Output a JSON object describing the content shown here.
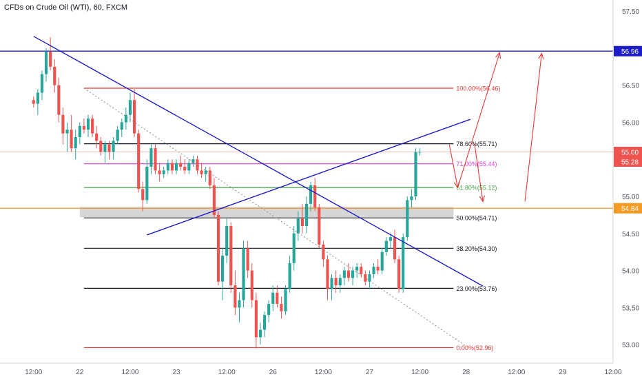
{
  "chart_data": {
    "type": "candlestick",
    "title": "CFDs on Crude Oil (WTI), 60, FXCM",
    "price_axis": {
      "ylim": [
        52.75,
        57.65
      ],
      "ticks": [
        57.5,
        57.0,
        56.5,
        56.0,
        55.5,
        55.0,
        54.5,
        54.0,
        53.5,
        53.0
      ],
      "tick_labels": [
        "57.50",
        "57.00",
        "56.50",
        "56.00",
        "55.50",
        "55.00",
        "54.50",
        "54.00",
        "53.50",
        "53.00"
      ]
    },
    "time_axis": {
      "xlim": [
        -8,
        138
      ],
      "ticks": [
        {
          "t": 0,
          "label": "12:00"
        },
        {
          "t": 11,
          "label": "22"
        },
        {
          "t": 23,
          "label": "12:00"
        },
        {
          "t": 34,
          "label": "23"
        },
        {
          "t": 46,
          "label": "12:00"
        },
        {
          "t": 57,
          "label": "26"
        },
        {
          "t": 69,
          "label": "12:00"
        },
        {
          "t": 80,
          "label": "27"
        },
        {
          "t": 92,
          "label": "12:00"
        },
        {
          "t": 103,
          "label": "28"
        },
        {
          "t": 115,
          "label": "12:00"
        },
        {
          "t": 126,
          "label": "29"
        },
        {
          "t": 138,
          "label": "12:00"
        }
      ]
    },
    "colors": {
      "up": "#26a69a",
      "down": "#ef5350"
    },
    "candles_ohlc": [
      [
        56.3,
        56.35,
        56.2,
        56.25
      ],
      [
        56.25,
        56.45,
        56.1,
        56.4
      ],
      [
        56.4,
        56.7,
        56.3,
        56.65
      ],
      [
        56.65,
        57.0,
        56.55,
        56.95
      ],
      [
        56.95,
        57.15,
        56.7,
        56.75
      ],
      [
        56.75,
        56.85,
        56.4,
        56.5
      ],
      [
        56.5,
        56.6,
        56.0,
        56.1
      ],
      [
        56.1,
        56.2,
        55.7,
        55.85
      ],
      [
        55.85,
        56.0,
        55.6,
        55.9
      ],
      [
        55.9,
        56.1,
        55.6,
        55.65
      ],
      [
        55.65,
        55.9,
        55.5,
        55.8
      ],
      [
        55.8,
        56.0,
        55.7,
        55.95
      ],
      [
        55.95,
        56.05,
        55.85,
        55.9
      ],
      [
        55.9,
        56.1,
        55.8,
        56.05
      ],
      [
        56.05,
        56.1,
        55.8,
        55.85
      ],
      [
        55.85,
        55.95,
        55.65,
        55.75
      ],
      [
        55.75,
        55.8,
        55.55,
        55.6
      ],
      [
        55.6,
        55.75,
        55.45,
        55.7
      ],
      [
        55.7,
        55.75,
        55.5,
        55.6
      ],
      [
        55.6,
        55.8,
        55.5,
        55.75
      ],
      [
        55.75,
        55.95,
        55.7,
        55.9
      ],
      [
        55.9,
        56.05,
        55.8,
        56.0
      ],
      [
        56.0,
        56.2,
        55.9,
        56.1
      ],
      [
        56.1,
        56.4,
        56.0,
        56.3
      ],
      [
        56.3,
        56.45,
        55.8,
        55.85
      ],
      [
        55.85,
        55.9,
        55.05,
        55.1
      ],
      [
        55.1,
        55.2,
        54.8,
        54.95
      ],
      [
        54.95,
        55.5,
        54.9,
        55.4
      ],
      [
        55.4,
        55.7,
        55.3,
        55.65
      ],
      [
        55.65,
        55.7,
        55.3,
        55.35
      ],
      [
        55.35,
        55.45,
        55.2,
        55.3
      ],
      [
        55.3,
        55.4,
        55.25,
        55.35
      ],
      [
        55.35,
        55.5,
        55.3,
        55.45
      ],
      [
        55.45,
        55.5,
        55.3,
        55.35
      ],
      [
        55.35,
        55.5,
        55.3,
        55.45
      ],
      [
        55.45,
        55.55,
        55.35,
        55.4
      ],
      [
        55.4,
        55.5,
        55.3,
        55.35
      ],
      [
        55.35,
        55.5,
        55.3,
        55.45
      ],
      [
        55.45,
        55.55,
        55.4,
        55.5
      ],
      [
        55.5,
        55.55,
        55.3,
        55.35
      ],
      [
        55.35,
        55.45,
        55.25,
        55.3
      ],
      [
        55.3,
        55.4,
        55.2,
        55.35
      ],
      [
        55.35,
        55.4,
        55.1,
        55.15
      ],
      [
        55.15,
        55.25,
        54.7,
        54.75
      ],
      [
        54.75,
        54.8,
        53.8,
        53.85
      ],
      [
        53.85,
        54.3,
        53.6,
        54.2
      ],
      [
        54.2,
        54.7,
        54.1,
        54.6
      ],
      [
        54.6,
        54.65,
        53.7,
        53.8
      ],
      [
        53.8,
        54.0,
        53.4,
        53.5
      ],
      [
        53.5,
        53.7,
        53.3,
        53.6
      ],
      [
        53.6,
        54.4,
        53.5,
        54.3
      ],
      [
        54.3,
        54.4,
        53.9,
        54.0
      ],
      [
        54.0,
        54.1,
        53.5,
        53.6
      ],
      [
        53.6,
        53.7,
        52.95,
        53.1
      ],
      [
        53.1,
        53.3,
        53.0,
        53.2
      ],
      [
        53.2,
        53.45,
        53.1,
        53.4
      ],
      [
        53.4,
        53.6,
        53.3,
        53.55
      ],
      [
        53.55,
        53.8,
        53.45,
        53.7
      ],
      [
        53.7,
        53.8,
        53.5,
        53.55
      ],
      [
        53.55,
        53.65,
        53.35,
        53.45
      ],
      [
        53.45,
        53.8,
        53.4,
        53.75
      ],
      [
        53.75,
        54.2,
        53.7,
        54.1
      ],
      [
        54.1,
        54.6,
        54.0,
        54.5
      ],
      [
        54.5,
        54.8,
        54.4,
        54.7
      ],
      [
        54.7,
        54.9,
        54.5,
        54.6
      ],
      [
        54.6,
        55.0,
        54.5,
        54.9
      ],
      [
        54.9,
        55.2,
        54.8,
        55.15
      ],
      [
        55.15,
        55.25,
        54.8,
        54.85
      ],
      [
        54.85,
        54.9,
        54.3,
        54.35
      ],
      [
        54.35,
        54.4,
        54.05,
        54.15
      ],
      [
        54.15,
        54.2,
        53.6,
        53.75
      ],
      [
        53.75,
        53.95,
        53.6,
        53.9
      ],
      [
        53.9,
        54.0,
        53.7,
        53.8
      ],
      [
        53.8,
        53.95,
        53.7,
        53.9
      ],
      [
        53.9,
        54.05,
        53.8,
        54.0
      ],
      [
        54.0,
        54.1,
        53.85,
        53.9
      ],
      [
        53.9,
        54.05,
        53.8,
        54.0
      ],
      [
        54.0,
        54.1,
        53.9,
        54.05
      ],
      [
        54.05,
        54.1,
        53.9,
        53.95
      ],
      [
        53.95,
        54.0,
        53.8,
        53.85
      ],
      [
        53.85,
        54.0,
        53.75,
        53.95
      ],
      [
        53.95,
        54.1,
        53.9,
        54.05
      ],
      [
        54.05,
        54.15,
        53.95,
        54.0
      ],
      [
        54.0,
        54.3,
        53.95,
        54.25
      ],
      [
        54.25,
        54.45,
        54.2,
        54.4
      ],
      [
        54.4,
        54.5,
        54.3,
        54.45
      ],
      [
        54.45,
        54.55,
        54.1,
        54.15
      ],
      [
        54.15,
        54.2,
        53.7,
        53.75
      ],
      [
        53.75,
        54.5,
        53.7,
        54.45
      ],
      [
        54.45,
        55.0,
        54.4,
        54.95
      ],
      [
        54.95,
        55.1,
        54.85,
        55.0
      ],
      [
        55.0,
        55.65,
        54.95,
        55.6
      ],
      [
        55.6,
        55.65,
        55.55,
        55.6
      ]
    ],
    "horizontal_levels": [
      {
        "label": "56.96",
        "value": 56.96,
        "color": "#1c1cc8"
      },
      {
        "label": "54.84",
        "value": 54.84,
        "color": "#f59a23"
      }
    ],
    "fibonacci_levels": [
      {
        "label": "100.00%(56.46)",
        "value": 56.46,
        "color": "#e53935"
      },
      {
        "label": "78.60%(55.71)",
        "value": 55.71,
        "color": "#131722"
      },
      {
        "label": "71.00%(55.44)",
        "value": 55.44,
        "color": "#d63cd6"
      },
      {
        "label": "61.80%(55.12)",
        "value": 55.12,
        "color": "#43a047"
      },
      {
        "label": "50.00%(54.71)",
        "value": 54.71,
        "color": "#131722"
      },
      {
        "label": "38.20%(54.30)",
        "value": 54.3,
        "color": "#131722"
      },
      {
        "label": "23.00%(53.76)",
        "value": 53.76,
        "color": "#131722"
      },
      {
        "label": "0.00%(52.96)",
        "value": 52.96,
        "color": "#e53935"
      }
    ],
    "fib_range": {
      "t_start": 12,
      "t_end": 100
    },
    "trendlines": [
      {
        "from": [
          0,
          57.16
        ],
        "to": [
          107,
          53.79
        ],
        "color": "#1c1cc8"
      },
      {
        "from": [
          27,
          54.48
        ],
        "to": [
          104,
          56.04
        ],
        "color": "#1c1cc8"
      }
    ],
    "dotted_line": {
      "from": [
        12,
        56.46
      ],
      "to": [
        103,
        52.98
      ],
      "color": "#888888"
    },
    "support_zone": {
      "t_start": 11,
      "t_end": 100,
      "low": 54.72,
      "high": 54.86
    },
    "projection_arrows": [
      {
        "from": [
          101,
          55.12
        ],
        "to": [
          111,
          56.94
        ]
      },
      {
        "from": [
          99,
          55.7
        ],
        "to": [
          101,
          55.12
        ]
      },
      {
        "from": [
          105,
          55.71
        ],
        "to": [
          107,
          54.93
        ]
      },
      {
        "from": [
          117,
          54.93
        ],
        "to": [
          121,
          56.93
        ]
      }
    ],
    "current_price": {
      "value": 55.6,
      "label": "55.60",
      "countdown": "55:28",
      "color": "#ef5350"
    }
  }
}
